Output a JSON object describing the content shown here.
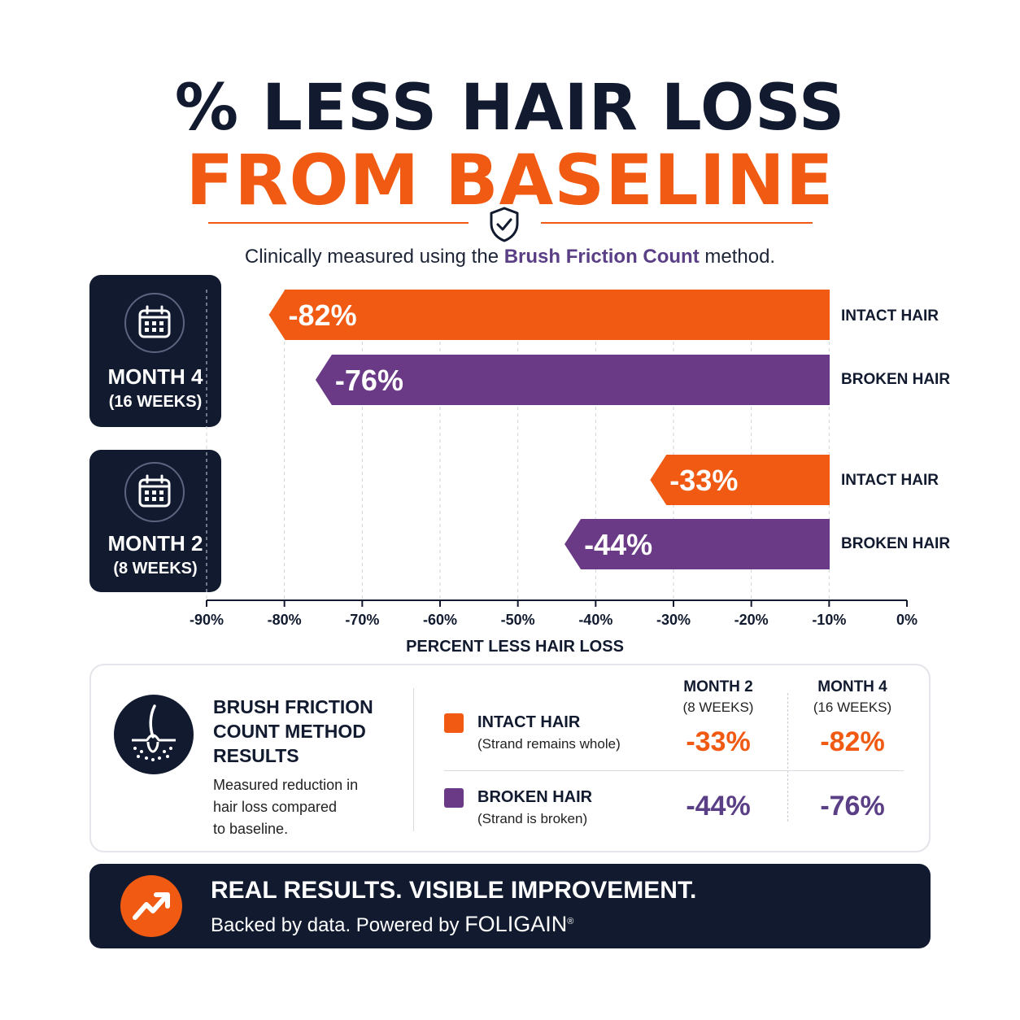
{
  "header": {
    "title_line1": "% LESS HAIR LOSS",
    "title_line2": "FROM BASELINE",
    "subtitle_pre": "Clinically measured using the ",
    "subtitle_highlight": "Brush Friction Count",
    "subtitle_post": " method."
  },
  "colors": {
    "navy": "#111a2e",
    "orange": "#f05a12",
    "purple": "#6a3a86",
    "grid": "#cfd2d8"
  },
  "icons": [
    "shield-check-icon",
    "calendar-icon",
    "hair-follicle-icon",
    "trending-up-icon"
  ],
  "months": [
    {
      "name": "MONTH 4",
      "weeks": "(16 WEEKS)"
    },
    {
      "name": "MONTH 2",
      "weeks": "(8 WEEKS)"
    }
  ],
  "chart_data": {
    "type": "bar",
    "orientation": "horizontal",
    "groups": [
      "MONTH 4",
      "MONTH 2"
    ],
    "series": [
      {
        "name": "INTACT HAIR",
        "color": "#f05a12",
        "values": [
          -82,
          -33
        ],
        "labels": [
          "-82%",
          "-33%"
        ]
      },
      {
        "name": "BROKEN HAIR",
        "color": "#6a3a86",
        "values": [
          -76,
          -44
        ],
        "labels": [
          "-76%",
          "-44%"
        ]
      }
    ],
    "xlabel": "PERCENT LESS HAIR LOSS",
    "xlim": [
      -90,
      0
    ],
    "xticks": [
      -90,
      -80,
      -70,
      -60,
      -50,
      -40,
      -30,
      -20,
      -10,
      0
    ],
    "xtick_labels": [
      "-90%",
      "-80%",
      "-70%",
      "-60%",
      "-50%",
      "-40%",
      "-30%",
      "-20%",
      "-10%",
      "0%"
    ],
    "grid": true
  },
  "legend": {
    "title_lines": [
      "BRUSH FRICTION",
      "COUNT METHOD",
      "RESULTS"
    ],
    "desc_lines": [
      "Measured reduction in",
      "hair loss compared",
      "to baseline."
    ],
    "col_month2": [
      "MONTH 2",
      "(8 WEEKS)"
    ],
    "col_month4": [
      "MONTH 4",
      "(16 WEEKS)"
    ],
    "rows": [
      {
        "name": "INTACT HAIR",
        "desc": "(Strand remains whole)",
        "m2": "-33%",
        "m4": "-82%"
      },
      {
        "name": "BROKEN HAIR",
        "desc": "(Strand is broken)",
        "m2": "-44%",
        "m4": "-76%"
      }
    ]
  },
  "footer": {
    "headline": "REAL RESULTS. VISIBLE IMPROVEMENT.",
    "tagline": "Backed by data. Powered by ",
    "brand": "FOLIGAIN",
    "brand_mark": "®"
  }
}
